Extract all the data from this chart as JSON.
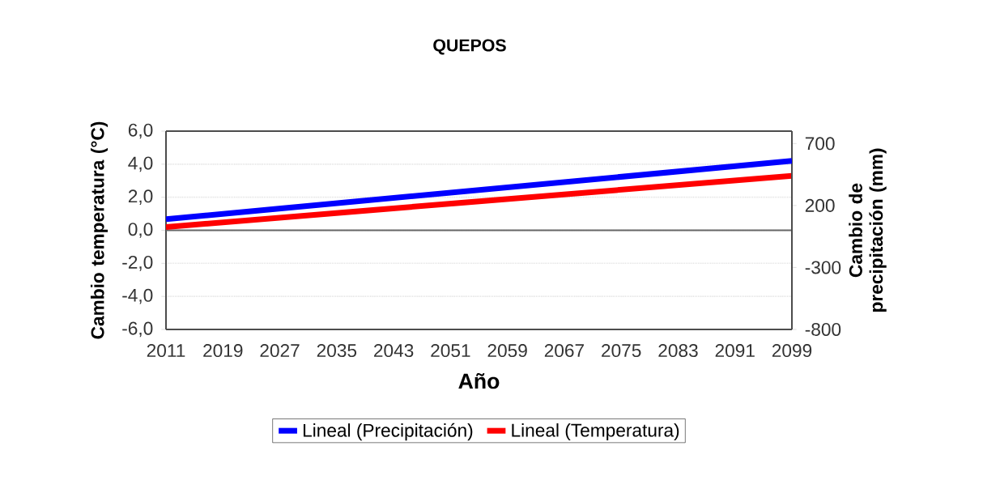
{
  "chart_data": {
    "type": "line",
    "title": "QUEPOS",
    "xlabel": "Año",
    "ylabel": "Cambio temperatura (°C)",
    "y2label": "Cambio de precipitación (mm)",
    "x": [
      2011,
      2099
    ],
    "series": [
      {
        "name": "Lineal (Precipitación)",
        "color": "#0000ff",
        "values": [
          90,
          560
        ],
        "axis": "y2"
      },
      {
        "name": "Lineal (Temperatura)",
        "color": "#ff0000",
        "values": [
          0.2,
          3.3
        ]
      }
    ],
    "xlim": [
      2011,
      2099
    ],
    "xticks": [
      2011,
      2019,
      2027,
      2035,
      2043,
      2051,
      2059,
      2067,
      2075,
      2083,
      2091,
      2099
    ],
    "ylim": [
      -6,
      6
    ],
    "yticks": [
      {
        "value": -6,
        "label": "-6,0"
      },
      {
        "value": -4,
        "label": "-4,0"
      },
      {
        "value": -2,
        "label": "-2,0"
      },
      {
        "value": 0,
        "label": "0,0"
      },
      {
        "value": 2,
        "label": "2,0"
      },
      {
        "value": 4,
        "label": "4,0"
      },
      {
        "value": 6,
        "label": "6,0"
      }
    ],
    "y2lim": [
      -800,
      800
    ],
    "y2ticks": [
      -800,
      -300,
      200,
      700
    ],
    "grid": "y",
    "legend": "bottom"
  }
}
